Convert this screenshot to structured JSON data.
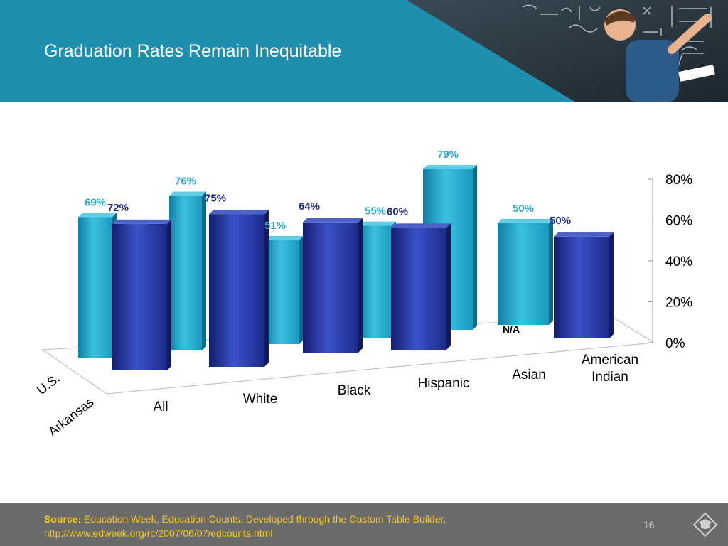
{
  "slide": {
    "title": "Graduation Rates Remain Inequitable",
    "page_number": "16",
    "source_label": "Source:",
    "source_text": "Education Week, Education Counts. Developed through the Custom Table Builder,",
    "source_url": "http://www.edweek.org/rc/2007/06/07/edcounts.html",
    "colors": {
      "header": "#1e8fae",
      "footer": "#6b6b6b",
      "source": "#f5c518"
    },
    "icons": [
      "graduation-cap-logo-icon",
      "teacher-chalkboard-photo"
    ]
  },
  "chart_data": {
    "type": "bar",
    "title": "",
    "categories": [
      "All",
      "White",
      "Black",
      "Hispanic",
      "Asian",
      "American Indian"
    ],
    "series": [
      {
        "name": "U.S.",
        "values": [
          69,
          76,
          51,
          55,
          79,
          50
        ],
        "labels": [
          "69%",
          "76%",
          "51%",
          "55%",
          "79%",
          "50%"
        ],
        "color": "#1fa3c7"
      },
      {
        "name": "Arkansas",
        "values": [
          72,
          75,
          64,
          60,
          null,
          50
        ],
        "labels": [
          "72%",
          "75%",
          "64%",
          "60%",
          "N/A",
          "50%"
        ],
        "color": "#1e2d8c"
      }
    ],
    "y_ticks": [
      "0%",
      "20%",
      "40%",
      "60%",
      "80%"
    ],
    "ylim": [
      0,
      80
    ],
    "grid": false,
    "legend": "left-depth-axis"
  }
}
